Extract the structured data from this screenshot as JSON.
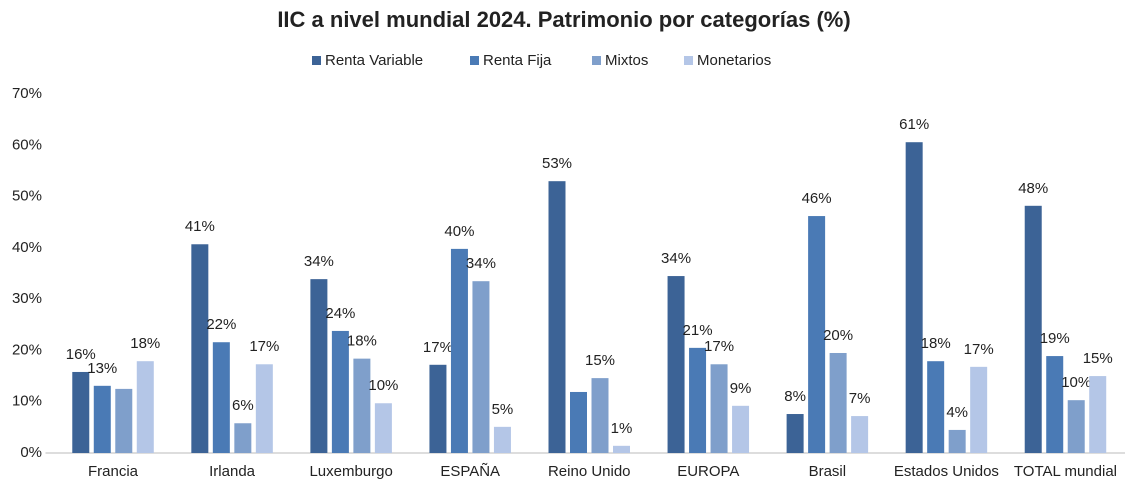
{
  "chart_data": {
    "type": "bar",
    "title": "IIC a nivel mundial 2024. Patrimonio por categorías (%)",
    "categories": [
      "Francia",
      "Irlanda",
      "Luxemburgo",
      "ESPAÑA",
      "Reino Unido",
      "EUROPA",
      "Brasil",
      "Estados Unidos",
      "TOTAL mundial"
    ],
    "series": [
      {
        "name": "Renta Variable",
        "color": "#3c6396",
        "values": [
          15.8,
          40.7,
          33.9,
          17.2,
          53.0,
          34.5,
          7.6,
          60.6,
          48.2
        ],
        "value_labels": [
          "16%",
          "41%",
          "34%",
          "17%",
          "53%",
          "34%",
          "8%",
          "61%",
          "48%"
        ]
      },
      {
        "name": "Renta Fija",
        "color": "#4a7ab5",
        "values": [
          13.1,
          21.6,
          23.8,
          39.8,
          11.9,
          20.5,
          46.2,
          17.9,
          18.9
        ],
        "value_labels": [
          "13%",
          "22%",
          "24%",
          "40%",
          null,
          "21%",
          "46%",
          "18%",
          "19%"
        ]
      },
      {
        "name": "Mixtos",
        "color": "#7f9fcb",
        "values": [
          12.5,
          5.8,
          18.4,
          33.5,
          14.6,
          17.3,
          19.5,
          4.5,
          10.3
        ],
        "value_labels": [
          null,
          "6%",
          "18%",
          "34%",
          "15%",
          "17%",
          "20%",
          "4%",
          "10%"
        ]
      },
      {
        "name": "Monetarios",
        "color": "#b4c6e7",
        "values": [
          17.9,
          17.3,
          9.7,
          5.1,
          1.4,
          9.2,
          7.2,
          16.8,
          15.0
        ],
        "value_labels": [
          "18%",
          "17%",
          "10%",
          "5%",
          "1%",
          "9%",
          "7%",
          "17%",
          "15%"
        ]
      }
    ],
    "ylim": [
      0,
      70
    ],
    "yticks": [
      {
        "value": 0,
        "label": "0%"
      },
      {
        "value": 10,
        "label": "10%"
      },
      {
        "value": 20,
        "label": "20%"
      },
      {
        "value": 30,
        "label": "30%"
      },
      {
        "value": 40,
        "label": "40%"
      },
      {
        "value": 50,
        "label": "50%"
      },
      {
        "value": 60,
        "label": "60%"
      },
      {
        "value": 70,
        "label": "70%"
      }
    ],
    "grid": false,
    "legend": "top"
  }
}
